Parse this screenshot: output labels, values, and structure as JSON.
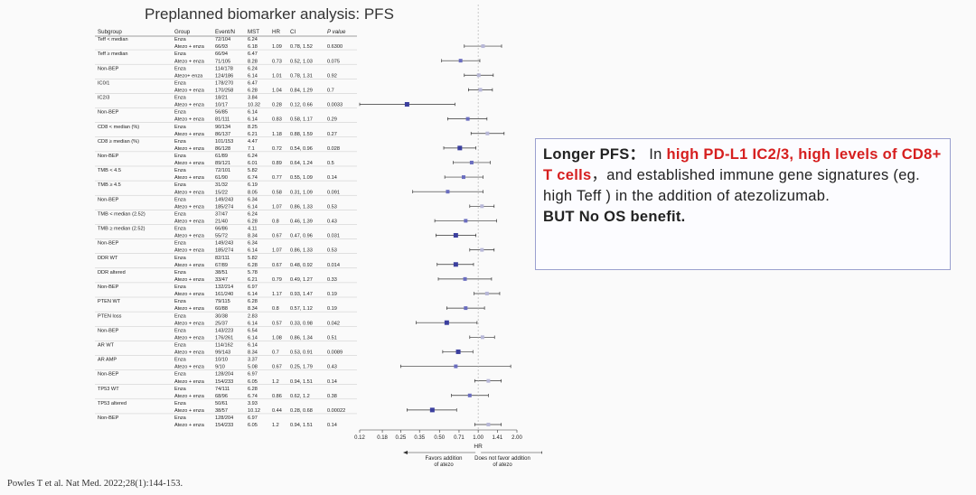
{
  "title": "Preplanned biomarker analysis: PFS",
  "citation": "Powles T et al. Nat Med. 2022;28(1):144-153.",
  "callout": {
    "lead": "Longer PFS：",
    "text_1": " In ",
    "highlight_1": "high PD-L1 IC2/3, high levels of CD8+ T cells",
    "text_2": "，and established immune gene signatures (eg. high Teff ) in the addition of atezolizumab.",
    "conclusion": "BUT No OS benefit."
  },
  "chart_data": {
    "type": "forest",
    "columns": [
      "Subgroup",
      "Group",
      "Event/N",
      "MST",
      "HR",
      "CI",
      "P value"
    ],
    "x_ticks": [
      "0.12",
      "0.18",
      "0.25",
      "0.35",
      "0.50",
      "0.71",
      "1.00",
      "1.41",
      "2.00"
    ],
    "xlabel": "HR",
    "favors_left": "Favors addition of atezo",
    "favors_right": "Does not favor addition of atezo",
    "xlim": [
      0.12,
      2.0
    ],
    "rows": [
      {
        "subgroup": "Teff < median",
        "group": "Enza",
        "events": "72/104",
        "mst": "6.24"
      },
      {
        "subgroup": "",
        "group": "Atezo + enza",
        "events": "66/93",
        "mst": "6.18",
        "hr": "1.09",
        "ci": "0.78, 1.52",
        "p": "0.6300",
        "hr_val": 1.09,
        "lo": 0.78,
        "hi": 1.52
      },
      {
        "subgroup": "Teff ≥ median",
        "group": "Enza",
        "events": "66/94",
        "mst": "6.47"
      },
      {
        "subgroup": "",
        "group": "Atezo + enza",
        "events": "71/105",
        "mst": "8.28",
        "hr": "0.73",
        "ci": "0.52, 1.03",
        "p": "0.075",
        "hr_val": 0.73,
        "lo": 0.52,
        "hi": 1.03
      },
      {
        "subgroup": "Non-BEP",
        "group": "Enza",
        "events": "114/178",
        "mst": "6.24"
      },
      {
        "subgroup": "",
        "group": "Atezo+ enza",
        "events": "124/186",
        "mst": "6.14",
        "hr": "1.01",
        "ci": "0.78, 1.31",
        "p": "0.92",
        "hr_val": 1.01,
        "lo": 0.78,
        "hi": 1.31
      },
      {
        "subgroup": "IC0/1",
        "group": "Enza",
        "events": "178/270",
        "mst": "6.47"
      },
      {
        "subgroup": "",
        "group": "Atezo + enza",
        "events": "170/258",
        "mst": "6.28",
        "hr": "1.04",
        "ci": "0.84, 1.29",
        "p": "0.7",
        "hr_val": 1.04,
        "lo": 0.84,
        "hi": 1.29
      },
      {
        "subgroup": "IC2/3",
        "group": "Enza",
        "events": "18/21",
        "mst": "3.84"
      },
      {
        "subgroup": "",
        "group": "Atezo + enza",
        "events": "10/17",
        "mst": "10.32",
        "hr": "0.28",
        "ci": "0.12, 0.66",
        "p": "0.0033",
        "hr_val": 0.28,
        "lo": 0.12,
        "hi": 0.66
      },
      {
        "subgroup": "Non-BEP",
        "group": "Enza",
        "events": "56/85",
        "mst": "6.14"
      },
      {
        "subgroup": "",
        "group": "Atezo + enza",
        "events": "81/111",
        "mst": "6.14",
        "hr": "0.83",
        "ci": "0.58, 1.17",
        "p": "0.29",
        "hr_val": 0.83,
        "lo": 0.58,
        "hi": 1.17
      },
      {
        "subgroup": "CD8 < median (%)",
        "group": "Enza",
        "events": "90/134",
        "mst": "8.25"
      },
      {
        "subgroup": "",
        "group": "Atezo + enza",
        "events": "86/137",
        "mst": "6.21",
        "hr": "1.18",
        "ci": "0.88, 1.59",
        "p": "0.27",
        "hr_val": 1.18,
        "lo": 0.88,
        "hi": 1.59
      },
      {
        "subgroup": "CD8 ≥ median (%)",
        "group": "Enza",
        "events": "101/153",
        "mst": "4.47"
      },
      {
        "subgroup": "",
        "group": "Atezo + enza",
        "events": "86/128",
        "mst": "7.1",
        "hr": "0.72",
        "ci": "0.54, 0.96",
        "p": "0.028",
        "hr_val": 0.72,
        "lo": 0.54,
        "hi": 0.96
      },
      {
        "subgroup": "Non-BEP",
        "group": "Enza",
        "events": "61/89",
        "mst": "6.24"
      },
      {
        "subgroup": "",
        "group": "Atezo + enza",
        "events": "89/121",
        "mst": "6.01",
        "hr": "0.89",
        "ci": "0.64, 1.24",
        "p": "0.5",
        "hr_val": 0.89,
        "lo": 0.64,
        "hi": 1.24
      },
      {
        "subgroup": "TMB < 4.5",
        "group": "Enza",
        "events": "72/101",
        "mst": "5.82"
      },
      {
        "subgroup": "",
        "group": "Atezo + enza",
        "events": "61/90",
        "mst": "6.74",
        "hr": "0.77",
        "ci": "0.55, 1.09",
        "p": "0.14",
        "hr_val": 0.77,
        "lo": 0.55,
        "hi": 1.09
      },
      {
        "subgroup": "TMB ≥ 4.5",
        "group": "Enza",
        "events": "31/32",
        "mst": "6.19"
      },
      {
        "subgroup": "",
        "group": "Atezo + enza",
        "events": "15/22",
        "mst": "8.05",
        "hr": "0.58",
        "ci": "0.31, 1.09",
        "p": "0.091",
        "hr_val": 0.58,
        "lo": 0.31,
        "hi": 1.09
      },
      {
        "subgroup": "Non-BEP",
        "group": "Enza",
        "events": "149/243",
        "mst": "6.34"
      },
      {
        "subgroup": "",
        "group": "Atezo + enza",
        "events": "185/274",
        "mst": "6.14",
        "hr": "1.07",
        "ci": "0.86, 1.33",
        "p": "0.53",
        "hr_val": 1.07,
        "lo": 0.86,
        "hi": 1.33
      },
      {
        "subgroup": "TMB < median (2.52)",
        "group": "Enza",
        "events": "37/47",
        "mst": "6.24"
      },
      {
        "subgroup": "",
        "group": "Atezo + enza",
        "events": "21/40",
        "mst": "6.28",
        "hr": "0.8",
        "ci": "0.46, 1.39",
        "p": "0.43",
        "hr_val": 0.8,
        "lo": 0.46,
        "hi": 1.39
      },
      {
        "subgroup": "TMB ≥ median (2.52)",
        "group": "Enza",
        "events": "66/86",
        "mst": "4.11"
      },
      {
        "subgroup": "",
        "group": "Atezo + enza",
        "events": "55/72",
        "mst": "8.34",
        "hr": "0.67",
        "ci": "0.47, 0.96",
        "p": "0.031",
        "hr_val": 0.67,
        "lo": 0.47,
        "hi": 0.96
      },
      {
        "subgroup": "Non-BEP",
        "group": "Enza",
        "events": "149/243",
        "mst": "6.34"
      },
      {
        "subgroup": "",
        "group": "Atezo + enza",
        "events": "185/274",
        "mst": "6.14",
        "hr": "1.07",
        "ci": "0.86, 1.33",
        "p": "0.53",
        "hr_val": 1.07,
        "lo": 0.86,
        "hi": 1.33
      },
      {
        "subgroup": "DDR WT",
        "group": "Enza",
        "events": "82/111",
        "mst": "5.82"
      },
      {
        "subgroup": "",
        "group": "Atezo + enza",
        "events": "67/89",
        "mst": "6.28",
        "hr": "0.67",
        "ci": "0.48, 0.92",
        "p": "0.014",
        "hr_val": 0.67,
        "lo": 0.48,
        "hi": 0.92
      },
      {
        "subgroup": "DDR altered",
        "group": "Enza",
        "events": "38/51",
        "mst": "5.78"
      },
      {
        "subgroup": "",
        "group": "Atezo + enza",
        "events": "33/47",
        "mst": "6.21",
        "hr": "0.79",
        "ci": "0.49, 1.27",
        "p": "0.33",
        "hr_val": 0.79,
        "lo": 0.49,
        "hi": 1.27
      },
      {
        "subgroup": "Non-BEP",
        "group": "Enza",
        "events": "132/214",
        "mst": "6.97"
      },
      {
        "subgroup": "",
        "group": "Atezo + enza",
        "events": "161/240",
        "mst": "6.14",
        "hr": "1.17",
        "ci": "0.93, 1.47",
        "p": "0.19",
        "hr_val": 1.17,
        "lo": 0.93,
        "hi": 1.47
      },
      {
        "subgroup": "PTEN WT",
        "group": "Enza",
        "events": "79/115",
        "mst": "6.28"
      },
      {
        "subgroup": "",
        "group": "Atezo + enza",
        "events": "60/88",
        "mst": "8.34",
        "hr": "0.8",
        "ci": "0.57, 1.12",
        "p": "0.19",
        "hr_val": 0.8,
        "lo": 0.57,
        "hi": 1.12
      },
      {
        "subgroup": "PTEN loss",
        "group": "Enza",
        "events": "30/38",
        "mst": "2.83"
      },
      {
        "subgroup": "",
        "group": "Atezo + enza",
        "events": "25/37",
        "mst": "6.14",
        "hr": "0.57",
        "ci": "0.33, 0.98",
        "p": "0.042",
        "hr_val": 0.57,
        "lo": 0.33,
        "hi": 0.98
      },
      {
        "subgroup": "Non-BEP",
        "group": "Enza",
        "events": "143/223",
        "mst": "6.54"
      },
      {
        "subgroup": "",
        "group": "Atezo + enza",
        "events": "176/261",
        "mst": "6.14",
        "hr": "1.08",
        "ci": "0.86, 1.34",
        "p": "0.51",
        "hr_val": 1.08,
        "lo": 0.86,
        "hi": 1.34
      },
      {
        "subgroup": "AR WT",
        "group": "Enza",
        "events": "114/162",
        "mst": "6.14"
      },
      {
        "subgroup": "",
        "group": "Atezo + enza",
        "events": "99/143",
        "mst": "8.34",
        "hr": "0.7",
        "ci": "0.53, 0.91",
        "p": "0.0089",
        "hr_val": 0.7,
        "lo": 0.53,
        "hi": 0.91
      },
      {
        "subgroup": "AR AMP",
        "group": "Enza",
        "events": "10/10",
        "mst": "3.37"
      },
      {
        "subgroup": "",
        "group": "Atezo + enza",
        "events": "9/10",
        "mst": "5.08",
        "hr": "0.67",
        "ci": "0.25, 1.79",
        "p": "0.43",
        "hr_val": 0.67,
        "lo": 0.25,
        "hi": 1.79
      },
      {
        "subgroup": "Non-BEP",
        "group": "Enza",
        "events": "128/204",
        "mst": "6.97"
      },
      {
        "subgroup": "",
        "group": "Atezo + enza",
        "events": "154/233",
        "mst": "6.05",
        "hr": "1.2",
        "ci": "0.94, 1.51",
        "p": "0.14",
        "hr_val": 1.2,
        "lo": 0.94,
        "hi": 1.51
      },
      {
        "subgroup": "TP53 WT",
        "group": "Enza",
        "events": "74/111",
        "mst": "6.28"
      },
      {
        "subgroup": "",
        "group": "Atezo + enza",
        "events": "68/96",
        "mst": "6.74",
        "hr": "0.86",
        "ci": "0.62, 1.2",
        "p": "0.38",
        "hr_val": 0.86,
        "lo": 0.62,
        "hi": 1.2
      },
      {
        "subgroup": "TP53 altered",
        "group": "Enza",
        "events": "50/61",
        "mst": "3.93"
      },
      {
        "subgroup": "",
        "group": "Atezo + enza",
        "events": "38/57",
        "mst": "10.12",
        "hr": "0.44",
        "ci": "0.28, 0.68",
        "p": "0.00022",
        "hr_val": 0.44,
        "lo": 0.28,
        "hi": 0.68
      },
      {
        "subgroup": "Non-BEP",
        "group": "Enza",
        "events": "128/204",
        "mst": "6.97"
      },
      {
        "subgroup": "",
        "group": "Atezo + enza",
        "events": "154/233",
        "mst": "6.05",
        "hr": "1.2",
        "ci": "0.94, 1.51",
        "p": "0.14",
        "hr_val": 1.2,
        "lo": 0.94,
        "hi": 1.51
      }
    ]
  }
}
